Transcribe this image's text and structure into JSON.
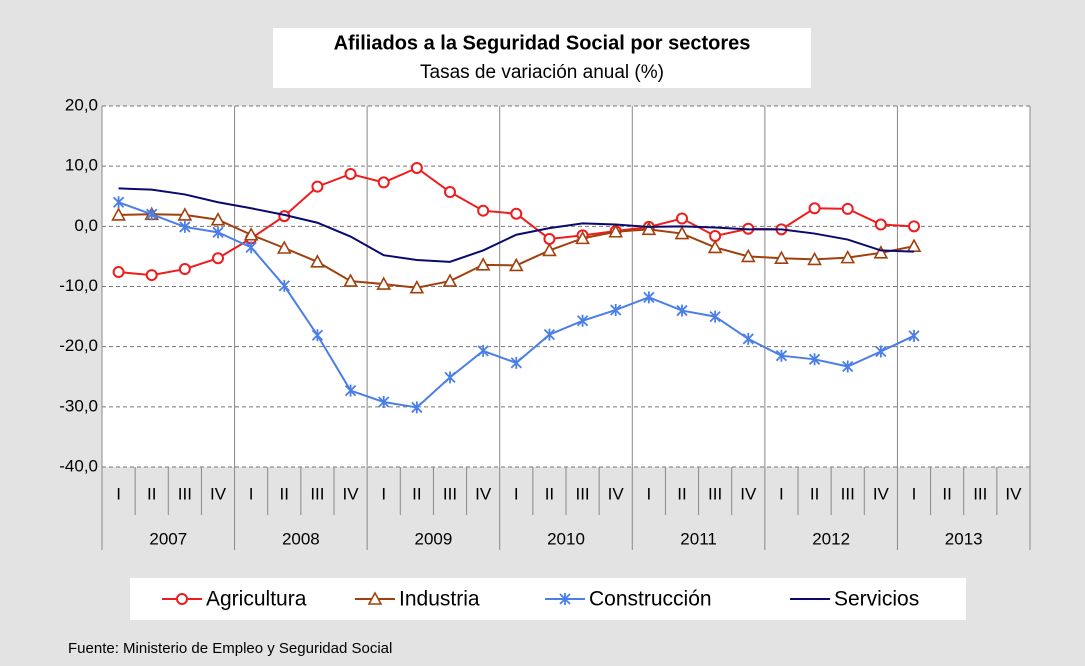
{
  "chart_data": {
    "type": "line",
    "title": "Afiliados a la Seguridad Social por sectores",
    "subtitle": "Tasas de variación anual (%)",
    "categories": [
      "I",
      "II",
      "III",
      "IV",
      "I",
      "II",
      "III",
      "IV",
      "I",
      "II",
      "III",
      "IV",
      "I",
      "II",
      "III",
      "IV",
      "I",
      "II",
      "III",
      "IV",
      "I",
      "II",
      "III",
      "IV",
      "I",
      "II",
      "III",
      "IV"
    ],
    "year_groups": [
      "2007",
      "2008",
      "2009",
      "2010",
      "2011",
      "2012",
      "2013"
    ],
    "ylim": [
      -40,
      20
    ],
    "yticks": [
      {
        "value": 20,
        "label": "20,0"
      },
      {
        "value": 10,
        "label": "10,0"
      },
      {
        "value": 0,
        "label": "0,0"
      },
      {
        "value": -10,
        "label": "-10,0"
      },
      {
        "value": -20,
        "label": "-20,0"
      },
      {
        "value": -30,
        "label": "-30,0"
      },
      {
        "value": -40,
        "label": "-40,0"
      }
    ],
    "grid": true,
    "legend": "bottom",
    "series": [
      {
        "name": "Agricultura",
        "color": "#ee1c1c",
        "marker": "circle",
        "values": [
          -7.6,
          -8.1,
          -7.1,
          -5.3,
          -2.0,
          1.7,
          6.6,
          8.7,
          7.3,
          9.7,
          5.7,
          2.6,
          2.1,
          -2.1,
          -1.5,
          -0.8,
          -0.1,
          1.3,
          -1.6,
          -0.4,
          -0.5,
          3.0,
          2.9,
          0.3,
          0.0,
          null,
          null,
          null
        ]
      },
      {
        "name": "Industria",
        "color": "#a0410d",
        "marker": "triangle",
        "values": [
          1.9,
          2.0,
          1.9,
          1.1,
          -1.4,
          -3.6,
          -5.9,
          -9.1,
          -9.6,
          -10.2,
          -9.1,
          -6.4,
          -6.5,
          -4.0,
          -2.0,
          -0.9,
          -0.5,
          -1.2,
          -3.5,
          -5.0,
          -5.3,
          -5.5,
          -5.2,
          -4.4,
          -3.3,
          null,
          null,
          null
        ]
      },
      {
        "name": "Construcción",
        "color": "#4a7ee8",
        "marker": "star",
        "values": [
          4.0,
          2.0,
          -0.1,
          -1.0,
          -3.5,
          -9.9,
          -18.1,
          -27.3,
          -29.2,
          -30.1,
          -25.1,
          -20.7,
          -22.7,
          -18.0,
          -15.7,
          -13.9,
          -11.8,
          -14.0,
          -15.0,
          -18.7,
          -21.5,
          -22.1,
          -23.3,
          -20.8,
          -18.2,
          null,
          null,
          null
        ]
      },
      {
        "name": "Servicios",
        "color": "#0a0a6e",
        "marker": "none",
        "values": [
          6.3,
          6.1,
          5.3,
          4.0,
          3.0,
          1.9,
          0.6,
          -1.7,
          -4.8,
          -5.6,
          -5.9,
          -4.0,
          -1.4,
          -0.3,
          0.5,
          0.3,
          -0.1,
          0.0,
          -0.2,
          -0.5,
          -0.5,
          -1.2,
          -2.2,
          -4.0,
          -4.2,
          null,
          null,
          null
        ]
      }
    ],
    "source": "Fuente: Ministerio de Empleo y Seguridad Social"
  }
}
